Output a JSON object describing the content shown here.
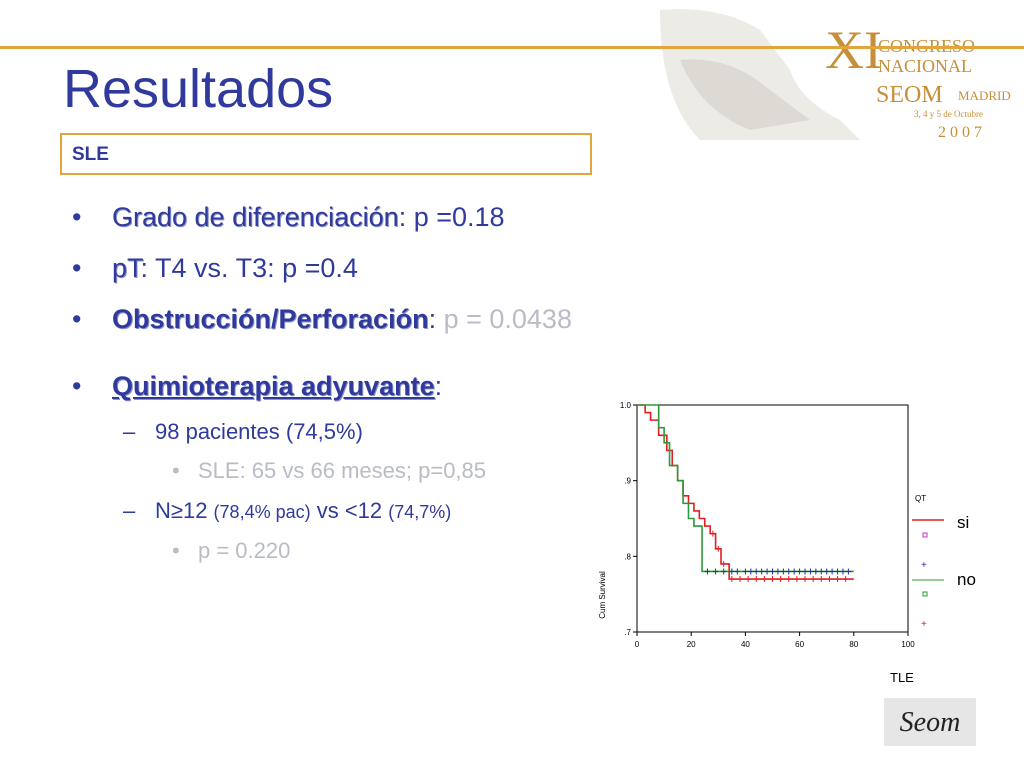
{
  "slide": {
    "title": "Resultados",
    "box_label": "SLE",
    "bullets": [
      {
        "label": "Grado de diferenciación",
        "rest": ": p =0.18"
      },
      {
        "label": "pT",
        "rest": ": T4 vs. T3: p =0.4"
      },
      {
        "label": "Obstrucción/Perforación",
        "sep": ":",
        "rest": " p = 0.0438"
      },
      {
        "label": "Quimioterapia adyuvante",
        "rest": ":"
      }
    ],
    "sub1": "98 pacientes (74,5%)",
    "subsub1": "SLE: 65 vs 66 meses; p=0,85",
    "sub2": {
      "a": "N≥12 ",
      "b": "(78,4% pac)",
      "c": " vs <12 ",
      "d": "(74,7%)"
    },
    "subsub2": "p = 0.220"
  },
  "congress": {
    "roman": "XI",
    "line1": "CONGRESO",
    "line2": "NACIONAL",
    "org": "SEOM",
    "city": "MADRID",
    "dates": "3, 4 y 5 de Octubre",
    "year": "2007"
  },
  "footer_logo_text": "Seom",
  "colors": {
    "title": "#2f3a9c",
    "accent": "#e0a53c",
    "muted": "#b9bbc6",
    "si": "#e02020",
    "no": "#2a9a3a",
    "censor_si": "#e02020",
    "censor_no": "#2a2ab0"
  },
  "chart_data": {
    "type": "line",
    "subtype": "kaplan-meier step",
    "xlabel": "TLE",
    "ylabel": "Cum Survival",
    "xlim": [
      0,
      100
    ],
    "ylim": [
      0.7,
      1.0
    ],
    "x_ticks": [
      "0",
      "20",
      "40",
      "60",
      "80",
      "100"
    ],
    "y_ticks": [
      ".7",
      ".8",
      ".9",
      "1.0"
    ],
    "legend_title": "QT",
    "legend": [
      "si",
      "no"
    ],
    "legend_placement": "right",
    "series": [
      {
        "name": "si",
        "color": "#e02020",
        "x": [
          0,
          3,
          5,
          8,
          11,
          13,
          15,
          17,
          19,
          21,
          23,
          25,
          27,
          29,
          31,
          34,
          80
        ],
        "y": [
          1.0,
          0.99,
          0.98,
          0.96,
          0.94,
          0.92,
          0.9,
          0.88,
          0.87,
          0.86,
          0.85,
          0.84,
          0.83,
          0.81,
          0.79,
          0.77,
          0.77
        ],
        "censored_x": [
          28,
          30,
          32,
          35,
          38,
          41,
          44,
          47,
          50,
          53,
          56,
          59,
          62,
          65,
          68,
          71,
          74,
          77
        ]
      },
      {
        "name": "no",
        "color": "#2a9a3a",
        "x": [
          0,
          8,
          10,
          12,
          15,
          17,
          19,
          21,
          24,
          80
        ],
        "y": [
          1.0,
          0.97,
          0.95,
          0.92,
          0.9,
          0.87,
          0.85,
          0.84,
          0.78,
          0.78
        ],
        "censored_x": [
          26,
          29,
          32,
          35,
          37,
          40,
          42,
          44,
          46,
          48,
          50,
          52,
          54,
          56,
          58,
          60,
          62,
          64,
          66,
          68,
          70,
          72,
          74,
          76,
          78
        ]
      }
    ]
  }
}
